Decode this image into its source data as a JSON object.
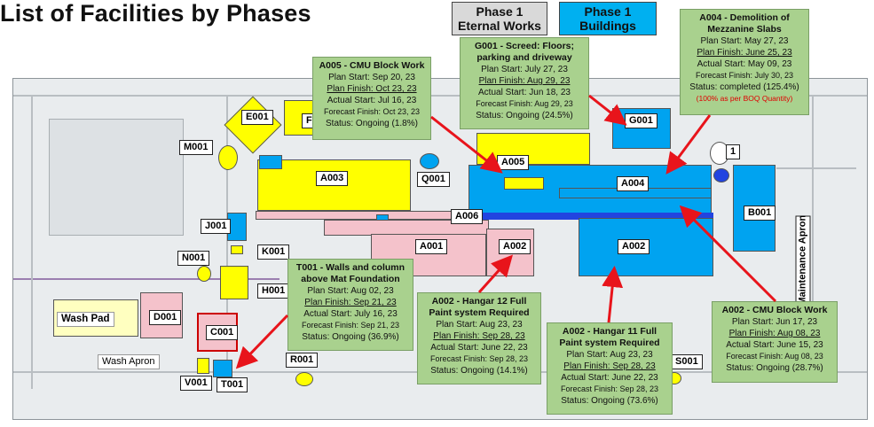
{
  "title": "List of Facilities by Phases",
  "legend": {
    "eternal_line1": "Phase 1",
    "eternal_line2": "Eternal Works",
    "eternal_color": "#d9d9d9",
    "buildings_line1": "Phase 1",
    "buildings_line2": "Buildings",
    "buildings_color": "#00b0f0"
  },
  "map_labels": {
    "E001": "E001",
    "F0": "F0",
    "M001": "M001",
    "A003": "A003",
    "Q001": "Q001",
    "A005": "A005",
    "G001": "G001",
    "A004": "A004",
    "D1": "1",
    "B001": "B001",
    "A006": "A006",
    "J001": "J001",
    "K001": "K001",
    "A001": "A001",
    "A002_pink": "A002",
    "A002_blue": "A002",
    "N001": "N001",
    "H001": "H001",
    "WashPad": "Wash Pad",
    "D001": "D001",
    "C001": "C001",
    "WashApron": "Wash Apron",
    "R001": "R001",
    "V001": "V001",
    "T001": "T001",
    "S001": "S001",
    "MaintApron": "Maintenance Apron"
  },
  "boxes": {
    "a005": {
      "title": "A005 - CMU Block Work",
      "plan_start": "Plan Start: Sep 20, 23",
      "plan_finish": "Plan Finish: Oct 23, 23",
      "actual_start": "Actual Start: Jul 16, 23",
      "forecast_finish": "Forecast Finish: Oct 23, 23",
      "status": "Status: Ongoing (1.8%)"
    },
    "g001": {
      "title1": "G001 - Screed: Floors;",
      "title2": "parking and driveway",
      "plan_start": "Plan Start: July 27, 23",
      "plan_finish": "Plan Finish: Aug 29, 23",
      "actual_start": "Actual Start: Jun 18, 23",
      "forecast_finish": "Forecast Finish: Aug 29, 23",
      "status": "Status: Ongoing (24.5%)"
    },
    "a004": {
      "title1": "A004 - Demolition of",
      "title2": "Mezzanine Slabs",
      "plan_start": "Plan Start: May 27, 23",
      "plan_finish": "Plan Finish: June 25, 23",
      "actual_start": "Actual Start: May 09, 23",
      "forecast_finish": "Forecast Finish: July 30, 23",
      "status": "Status: completed (125.4%)",
      "note": "(100% as per BOQ Quantity)"
    },
    "t001": {
      "title1": "T001 - Walls and column",
      "title2": "above Mat Foundation",
      "plan_start": "Plan Start: Aug 02, 23",
      "plan_finish": "Plan Finish: Sep 21, 23",
      "actual_start": "Actual Start: July 16, 23",
      "forecast_finish": "Forecast Finish: Sep 21, 23",
      "status": "Status: Ongoing (36.9%)"
    },
    "a002h12": {
      "title1": "A002 - Hangar 12 Full",
      "title2": "Paint system Required",
      "plan_start": "Plan Start: Aug 23, 23",
      "plan_finish": "Plan Finish: Sep 28, 23",
      "actual_start": "Actual Start: June 22, 23",
      "forecast_finish": "Forecast Finish: Sep 28, 23",
      "status": "Status: Ongoing (14.1%)"
    },
    "a002h11": {
      "title1": "A002 - Hangar 11 Full",
      "title2": "Paint system Required",
      "plan_start": "Plan Start: Aug 23, 23",
      "plan_finish": "Plan Finish: Sep 28, 23",
      "actual_start": "Actual Start: June 22, 23",
      "forecast_finish": "Forecast Finish: Sep 28, 23",
      "status": "Status: Ongoing (73.6%)"
    },
    "a002cmu": {
      "title": "A002 - CMU Block Work",
      "plan_start": "Plan Start: Jun 17, 23",
      "plan_finish": "Plan Finish: Aug 08, 23",
      "actual_start": "Actual Start: June 15, 23",
      "forecast_finish": "Forecast Finish: Aug 08, 23",
      "status": "Status: Ongoing (28.7%)"
    }
  }
}
